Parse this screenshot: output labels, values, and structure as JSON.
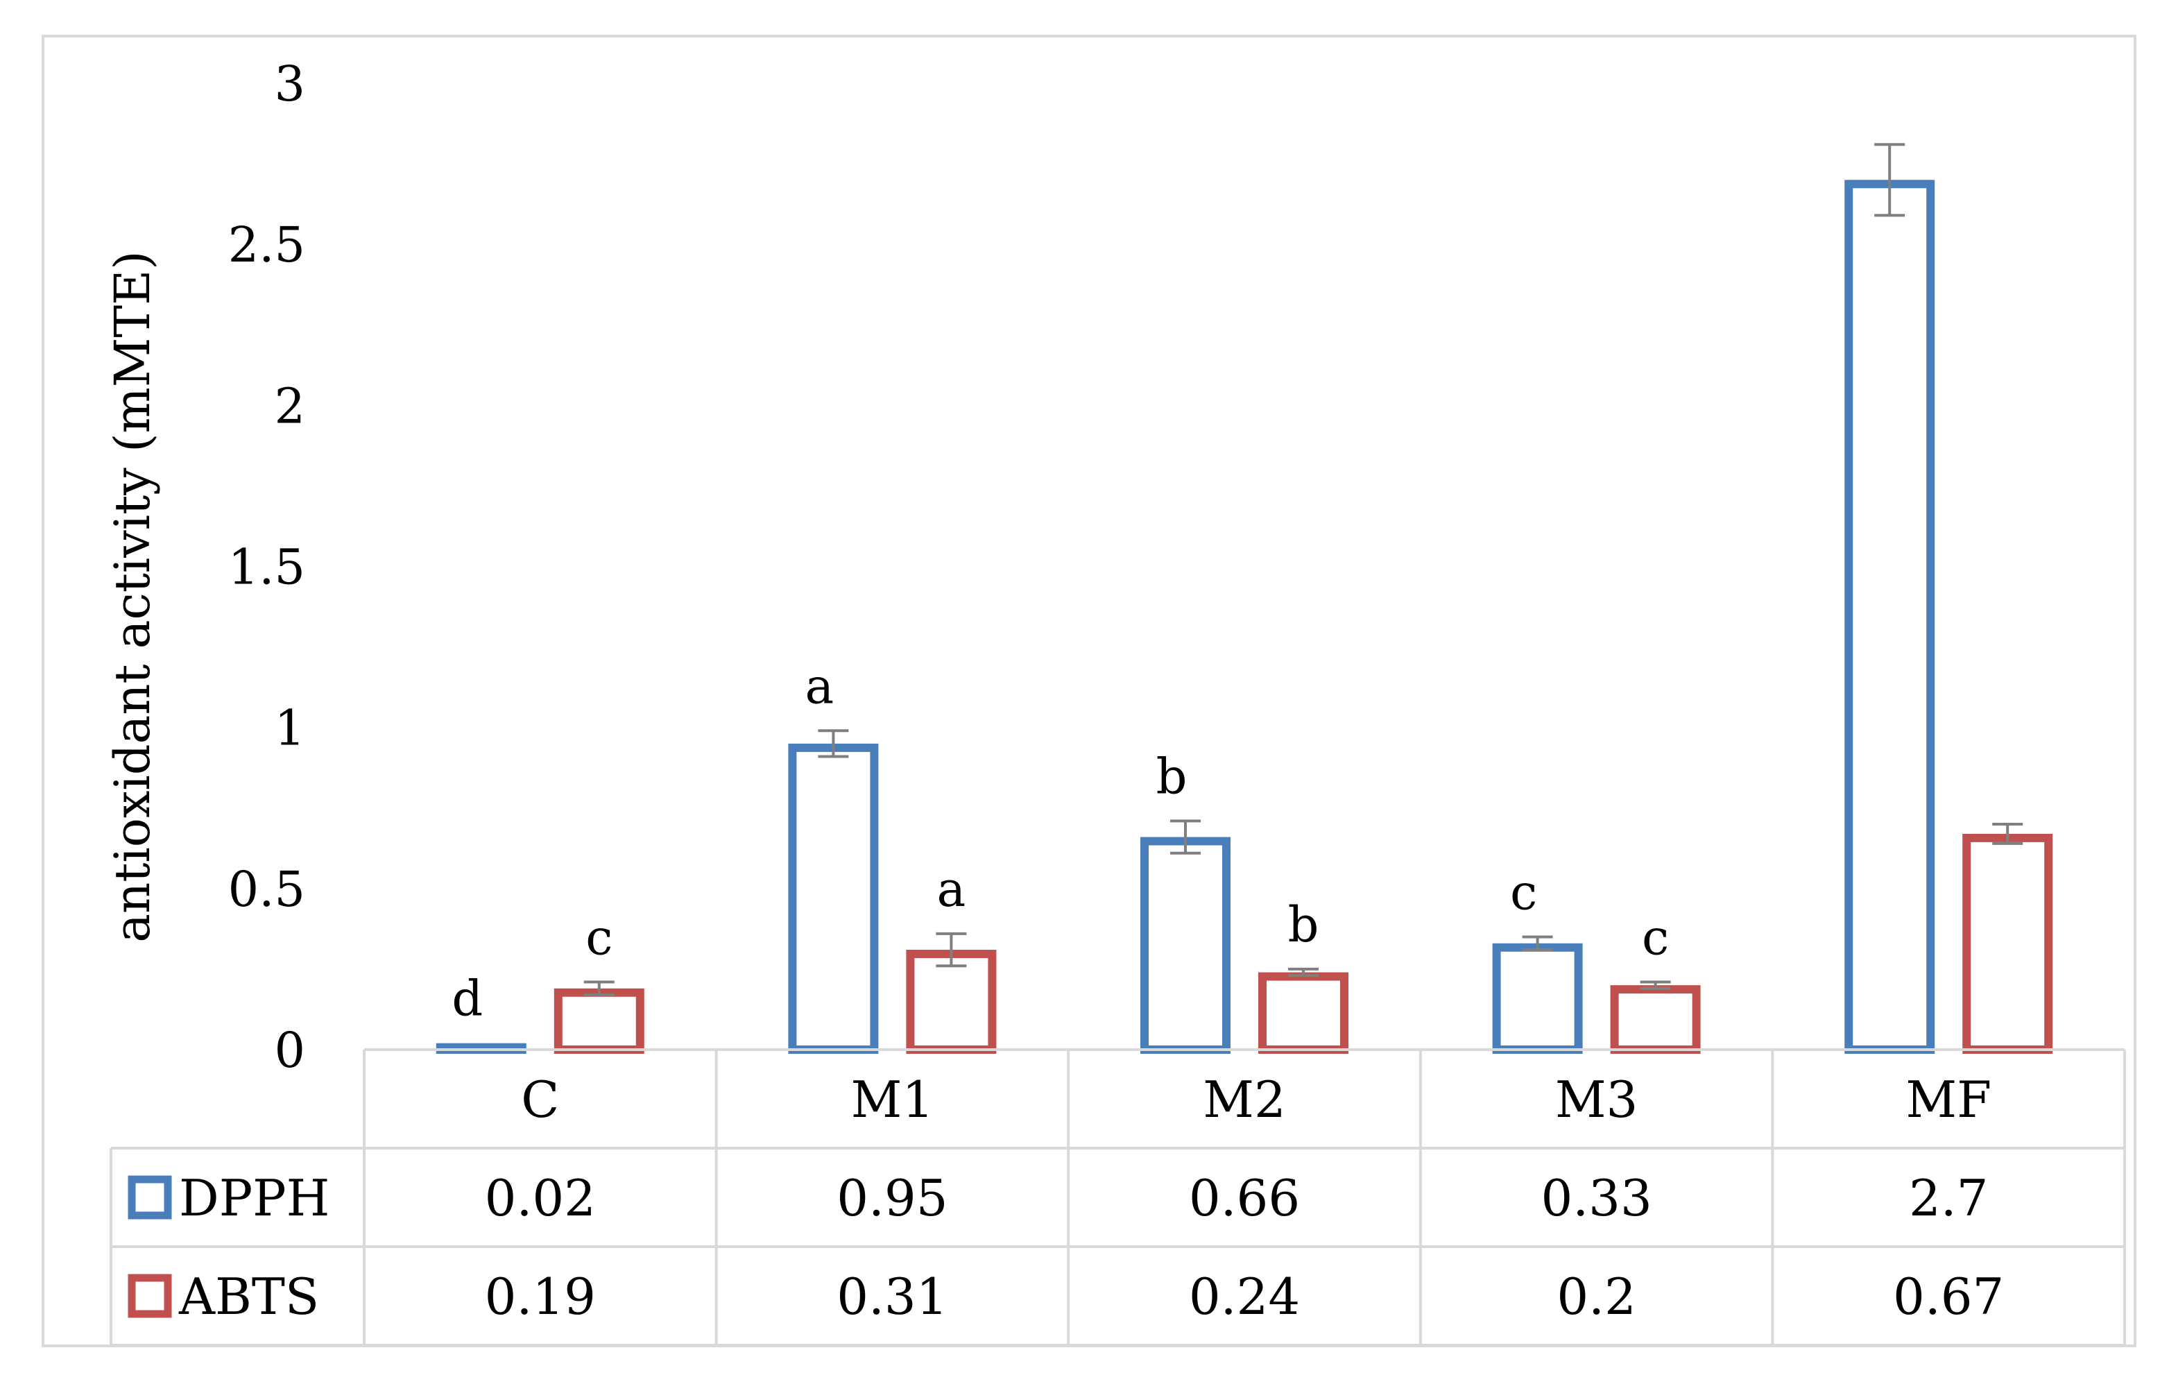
{
  "chart_data": {
    "type": "bar",
    "ylabel": "antioxidant activity (mMTE)",
    "ylim": [
      0,
      3
    ],
    "yticks": [
      0,
      0.5,
      1,
      1.5,
      2,
      2.5,
      3
    ],
    "ytick_labels": [
      "0",
      "0.5",
      "1",
      "1.5",
      "2",
      "2.5",
      "3"
    ],
    "categories": [
      "C",
      "M1",
      "M2",
      "M3",
      "MF"
    ],
    "series": [
      {
        "name": "DPPH",
        "color": "#4a7ebb",
        "values": [
          0.02,
          0.95,
          0.66,
          0.33,
          2.7
        ],
        "value_labels": [
          "0.02",
          "0.95",
          "0.66",
          "0.33",
          "2.7"
        ],
        "errors": [
          0,
          0.04,
          0.05,
          0.02,
          0.11
        ],
        "significance": [
          "d",
          "a",
          "b",
          "c",
          ""
        ]
      },
      {
        "name": "ABTS",
        "color": "#c0504d",
        "values": [
          0.19,
          0.31,
          0.24,
          0.2,
          0.67
        ],
        "value_labels": [
          "0.19",
          "0.31",
          "0.24",
          "0.2",
          "0.67"
        ],
        "errors": [
          0.02,
          0.05,
          0.01,
          0.01,
          0.03
        ],
        "significance": [
          "c",
          "a",
          "b",
          "c",
          ""
        ]
      }
    ],
    "grid": false,
    "legend": "data-table"
  }
}
